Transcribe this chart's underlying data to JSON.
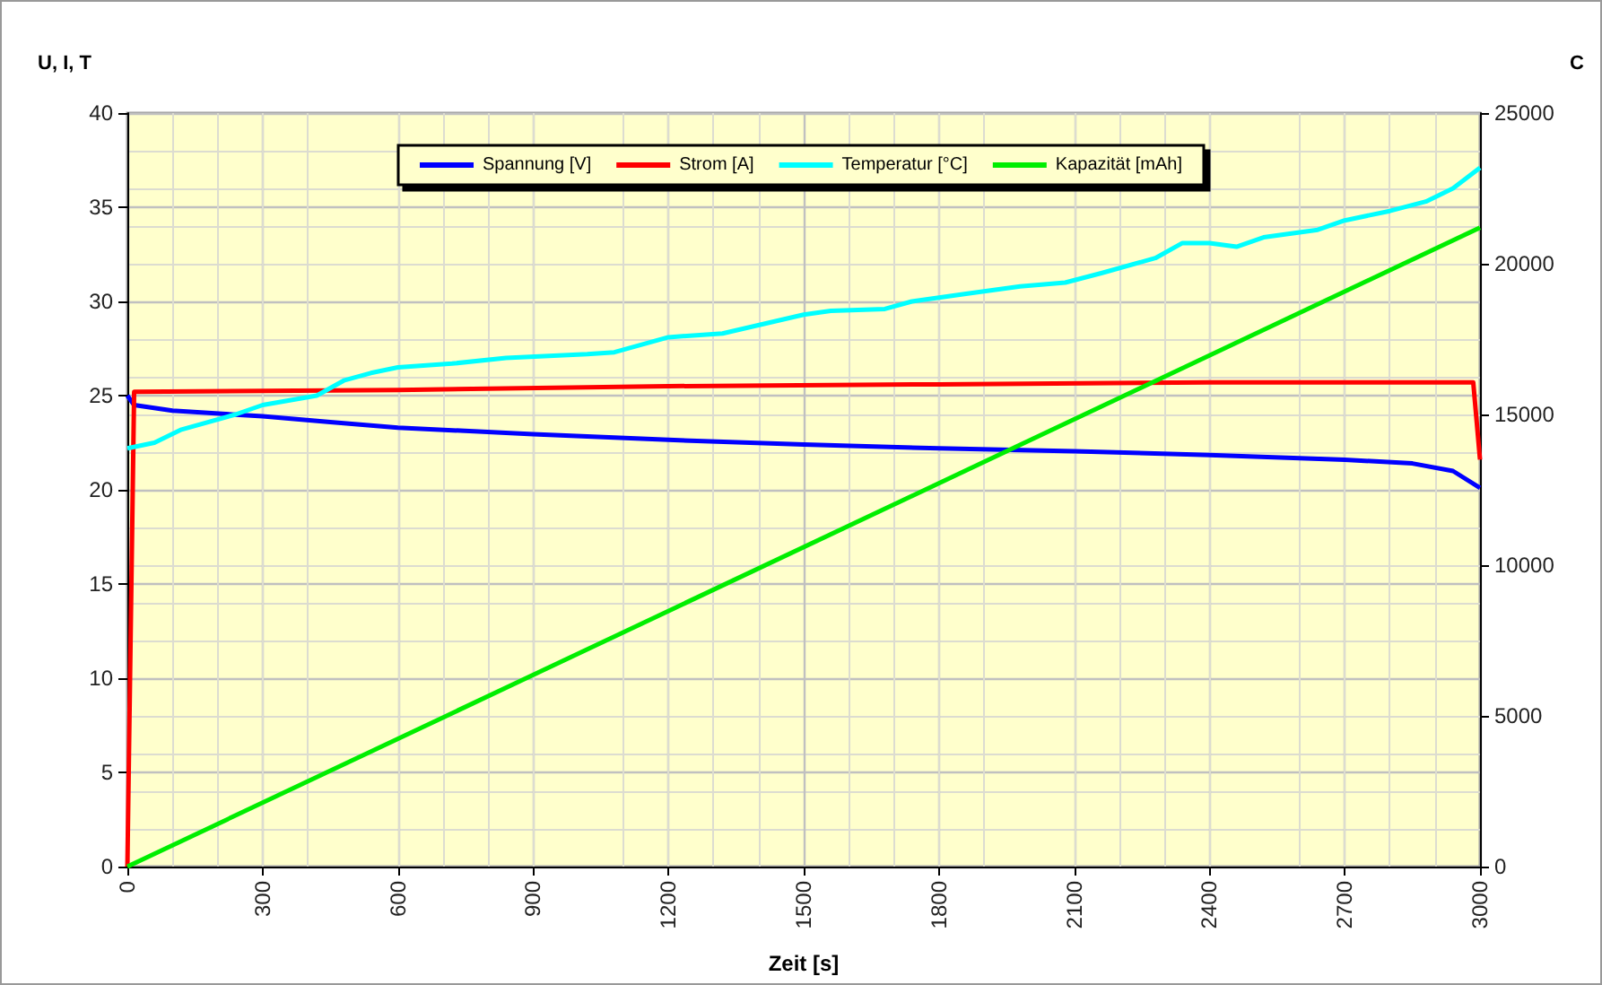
{
  "chart_data": {
    "type": "line",
    "xlabel": "Zeit [s]",
    "ylabel": "U, I, T",
    "y2label": "C",
    "xlim": [
      0,
      3000
    ],
    "xticks": [
      0,
      300,
      600,
      900,
      1200,
      1500,
      1800,
      2100,
      2400,
      2700,
      3000
    ],
    "ylim": [
      0,
      40
    ],
    "yticks": [
      0,
      5,
      10,
      15,
      20,
      25,
      30,
      35,
      40
    ],
    "y2lim": [
      0,
      25000
    ],
    "y2ticks": [
      0,
      5000,
      10000,
      15000,
      20000,
      25000
    ],
    "grid": true,
    "legend": "top",
    "marker": "none",
    "line_style": "solid",
    "series": [
      {
        "name": "Spannung [V]",
        "color": "#0000ff",
        "x": [
          0,
          15,
          100,
          300,
          450,
          600,
          900,
          1200,
          1500,
          1800,
          2100,
          2400,
          2700,
          2850,
          2940,
          3000
        ],
        "values": [
          25.0,
          24.5,
          24.2,
          23.9,
          23.6,
          23.3,
          22.95,
          22.65,
          22.4,
          22.2,
          22.05,
          21.85,
          21.6,
          21.4,
          21.0,
          20.1
        ]
      },
      {
        "name": "Strom [A]",
        "color": "#ff0000",
        "x": [
          0,
          15,
          600,
          1200,
          1800,
          2400,
          2985,
          3000
        ],
        "values": [
          0,
          25.2,
          25.3,
          25.5,
          25.6,
          25.7,
          25.7,
          21.6
        ]
      },
      {
        "name": "Temperatur [°C]",
        "color": "#00ffff",
        "x": [
          0,
          60,
          120,
          240,
          300,
          420,
          480,
          540,
          600,
          720,
          840,
          1020,
          1080,
          1200,
          1320,
          1500,
          1560,
          1680,
          1740,
          1860,
          1980,
          2080,
          2160,
          2280,
          2340,
          2400,
          2460,
          2520,
          2640,
          2700,
          2800,
          2880,
          2940,
          3000
        ],
        "values": [
          22.2,
          22.5,
          23.2,
          24.0,
          24.5,
          25.0,
          25.8,
          26.2,
          26.5,
          26.7,
          27.0,
          27.2,
          27.3,
          28.1,
          28.3,
          29.3,
          29.5,
          29.6,
          30.0,
          30.4,
          30.8,
          31.0,
          31.5,
          32.3,
          33.1,
          33.1,
          32.9,
          33.4,
          33.8,
          34.3,
          34.8,
          35.3,
          36.0,
          37.1
        ]
      },
      {
        "name": "Kapazität [mAh]",
        "color": "#00ee00",
        "axis": "y2",
        "x": [
          0,
          3000
        ],
        "values": [
          0,
          21200
        ]
      }
    ]
  }
}
